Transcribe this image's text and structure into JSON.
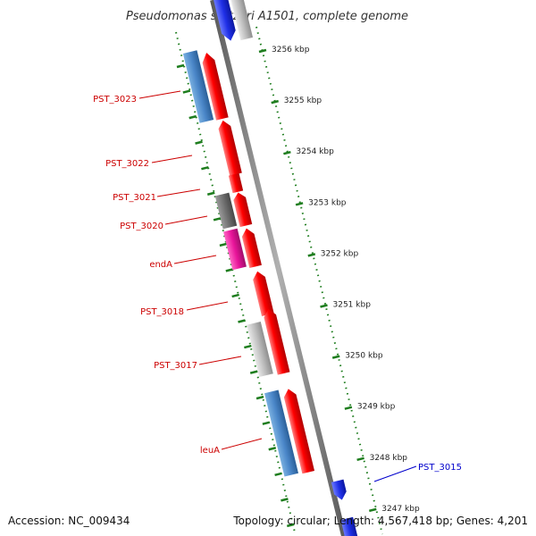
{
  "title": "Pseudomonas stutzeri A1501, complete genome",
  "footer": {
    "accession": "Accession: NC_009434",
    "topology": "Topology: circular; Length: 4,567,418 bp; Genes: 4,201"
  },
  "colors": {
    "forward_gene": "#ff0000",
    "reverse_gene": "#4a86c8",
    "reverse_gray": "#b8b8b8",
    "dark_gray": "#6f6f6f",
    "magenta": "#e8149a",
    "blue_gene": "#1f2fe6",
    "backbone": "#808080",
    "ticks": "#1e7d1e",
    "label_red": "#cc0000",
    "label_blue": "#0000cc"
  },
  "kbp_ticks": [
    "3256 kbp",
    "3255 kbp",
    "3254 kbp",
    "3253 kbp",
    "3252 kbp",
    "3251 kbp",
    "3250 kbp",
    "3249 kbp",
    "3248 kbp",
    "3247 kbp"
  ],
  "gene_labels": [
    {
      "text": "PST_3023",
      "color": "red"
    },
    {
      "text": "PST_3022",
      "color": "red"
    },
    {
      "text": "PST_3021",
      "color": "red"
    },
    {
      "text": "PST_3020",
      "color": "red"
    },
    {
      "text": "endA",
      "color": "red"
    },
    {
      "text": "PST_3018",
      "color": "red"
    },
    {
      "text": "PST_3017",
      "color": "red"
    },
    {
      "text": "leuA",
      "color": "red"
    },
    {
      "text": "PST_3015",
      "color": "blue"
    }
  ]
}
